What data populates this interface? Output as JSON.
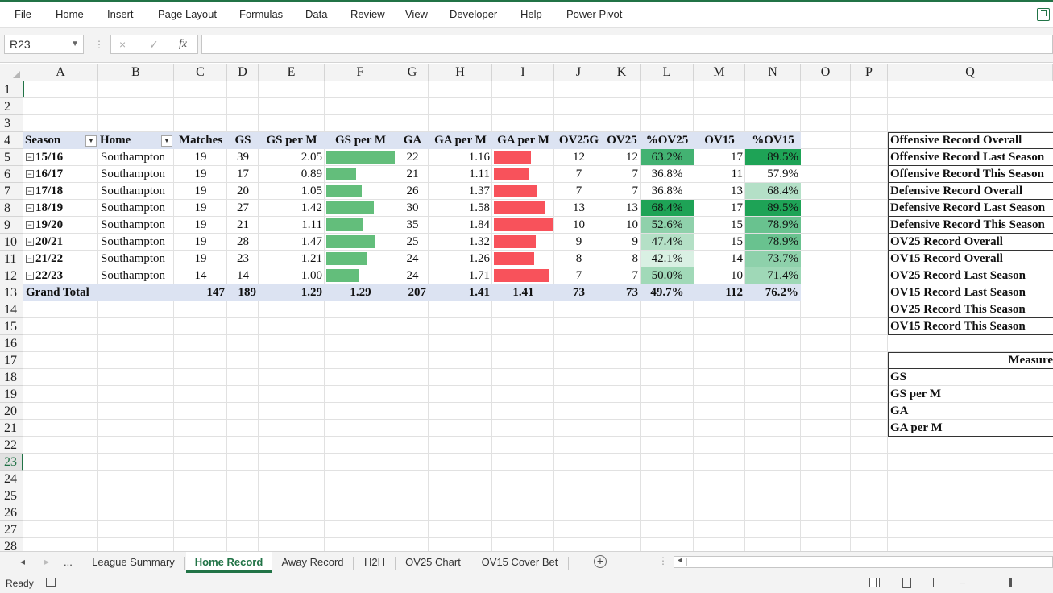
{
  "ribbon": {
    "tabs": [
      "File",
      "Home",
      "Insert",
      "Page Layout",
      "Formulas",
      "Data",
      "Review",
      "View",
      "Developer",
      "Help",
      "Power Pivot"
    ]
  },
  "formula_bar": {
    "name_box": "R23",
    "cancel_icon": "×",
    "enter_icon": "✓",
    "fx_label": "fx",
    "content": ""
  },
  "columns": [
    "A",
    "B",
    "C",
    "D",
    "E",
    "F",
    "G",
    "H",
    "I",
    "J",
    "K",
    "L",
    "M",
    "N",
    "O",
    "P",
    "Q"
  ],
  "rows": [
    "1",
    "2",
    "3",
    "4",
    "5",
    "6",
    "7",
    "8",
    "9",
    "10",
    "11",
    "12",
    "13",
    "14",
    "15",
    "16",
    "17",
    "18",
    "19",
    "20",
    "21",
    "22",
    "23",
    "24",
    "25",
    "26",
    "27",
    "28"
  ],
  "selected_row": "23",
  "pivot": {
    "headers": [
      "Season",
      "Home",
      "Matches",
      "GS",
      "GS per M",
      "GS per M",
      "GA",
      "GA per M",
      "GA per M",
      "OV25G",
      "OV25",
      "%OV25",
      "OV15",
      "%OV15"
    ],
    "rows": [
      {
        "season": "15/16",
        "home": "Southampton",
        "matches": "19",
        "gs": "39",
        "gspm": "2.05",
        "gspm_bar": 2.05,
        "ga": "22",
        "gapm": "1.16",
        "gapm_bar": 1.16,
        "ov25g": "12",
        "ov25": "12",
        "pov25": "63.2%",
        "pov25_v": 63.2,
        "ov15": "17",
        "pov15": "89.5%",
        "pov15_v": 89.5
      },
      {
        "season": "16/17",
        "home": "Southampton",
        "matches": "19",
        "gs": "17",
        "gspm": "0.89",
        "gspm_bar": 0.89,
        "ga": "21",
        "gapm": "1.11",
        "gapm_bar": 1.11,
        "ov25g": "7",
        "ov25": "7",
        "pov25": "36.8%",
        "pov25_v": 36.8,
        "ov15": "11",
        "pov15": "57.9%",
        "pov15_v": 57.9
      },
      {
        "season": "17/18",
        "home": "Southampton",
        "matches": "19",
        "gs": "20",
        "gspm": "1.05",
        "gspm_bar": 1.05,
        "ga": "26",
        "gapm": "1.37",
        "gapm_bar": 1.37,
        "ov25g": "7",
        "ov25": "7",
        "pov25": "36.8%",
        "pov25_v": 36.8,
        "ov15": "13",
        "pov15": "68.4%",
        "pov15_v": 68.4
      },
      {
        "season": "18/19",
        "home": "Southampton",
        "matches": "19",
        "gs": "27",
        "gspm": "1.42",
        "gspm_bar": 1.42,
        "ga": "30",
        "gapm": "1.58",
        "gapm_bar": 1.58,
        "ov25g": "13",
        "ov25": "13",
        "pov25": "68.4%",
        "pov25_v": 68.4,
        "ov15": "17",
        "pov15": "89.5%",
        "pov15_v": 89.5
      },
      {
        "season": "19/20",
        "home": "Southampton",
        "matches": "19",
        "gs": "21",
        "gspm": "1.11",
        "gspm_bar": 1.11,
        "ga": "35",
        "gapm": "1.84",
        "gapm_bar": 1.84,
        "ov25g": "10",
        "ov25": "10",
        "pov25": "52.6%",
        "pov25_v": 52.6,
        "ov15": "15",
        "pov15": "78.9%",
        "pov15_v": 78.9
      },
      {
        "season": "20/21",
        "home": "Southampton",
        "matches": "19",
        "gs": "28",
        "gspm": "1.47",
        "gspm_bar": 1.47,
        "ga": "25",
        "gapm": "1.32",
        "gapm_bar": 1.32,
        "ov25g": "9",
        "ov25": "9",
        "pov25": "47.4%",
        "pov25_v": 47.4,
        "ov15": "15",
        "pov15": "78.9%",
        "pov15_v": 78.9
      },
      {
        "season": "21/22",
        "home": "Southampton",
        "matches": "19",
        "gs": "23",
        "gspm": "1.21",
        "gspm_bar": 1.21,
        "ga": "24",
        "gapm": "1.26",
        "gapm_bar": 1.26,
        "ov25g": "8",
        "ov25": "8",
        "pov25": "42.1%",
        "pov25_v": 42.1,
        "ov15": "14",
        "pov15": "73.7%",
        "pov15_v": 73.7
      },
      {
        "season": "22/23",
        "home": "Southampton",
        "matches": "14",
        "gs": "14",
        "gspm": "1.00",
        "gspm_bar": 1.0,
        "ga": "24",
        "gapm": "1.71",
        "gapm_bar": 1.71,
        "ov25g": "7",
        "ov25": "7",
        "pov25": "50.0%",
        "pov25_v": 50.0,
        "ov15": "10",
        "pov15": "71.4%",
        "pov15_v": 71.4
      }
    ],
    "total": {
      "label": "Grand Total",
      "matches": "147",
      "gs": "189",
      "gspm": "1.29",
      "gspm2": "1.29",
      "ga": "207",
      "gapm": "1.41",
      "gapm2": "1.41",
      "ov25g": "73",
      "ov25": "73",
      "pov25": "49.7%",
      "ov15": "112",
      "pov15": "76.2%"
    },
    "gs_bar_max": 2.05,
    "ga_bar_max": 1.84,
    "colors": {
      "gs_bar": "#63be7b",
      "ga_bar": "#f8525b",
      "scale_low": "#ffffff",
      "scale_high": "#1ea356",
      "header_band": "#dce3f2"
    }
  },
  "q_list_1": [
    "Offensive Record Overall",
    "Offensive Record Last Season",
    "Offensive Record This Season",
    "Defensive Record Overall",
    "Defensive Record Last Season",
    "Defensive Record This Season",
    "OV25 Record Overall",
    "OV15 Record Overall",
    "OV25 Record Last Season",
    "OV15 Record Last Season",
    "OV25 Record This Season",
    "OV15 Record This Season"
  ],
  "q_list_2": {
    "header": "Measure",
    "items": [
      "GS",
      "GS per M",
      "GA",
      "GA per M"
    ]
  },
  "sheet_tabs": {
    "nav_prev": "◂",
    "nav_next": "▸",
    "more": "...",
    "tabs": [
      "League Summary",
      "Home Record",
      "Away Record",
      "H2H",
      "OV25 Chart",
      "OV15 Cover Bet"
    ],
    "active": "Home Record",
    "add": "+"
  },
  "status": {
    "text": "Ready"
  }
}
